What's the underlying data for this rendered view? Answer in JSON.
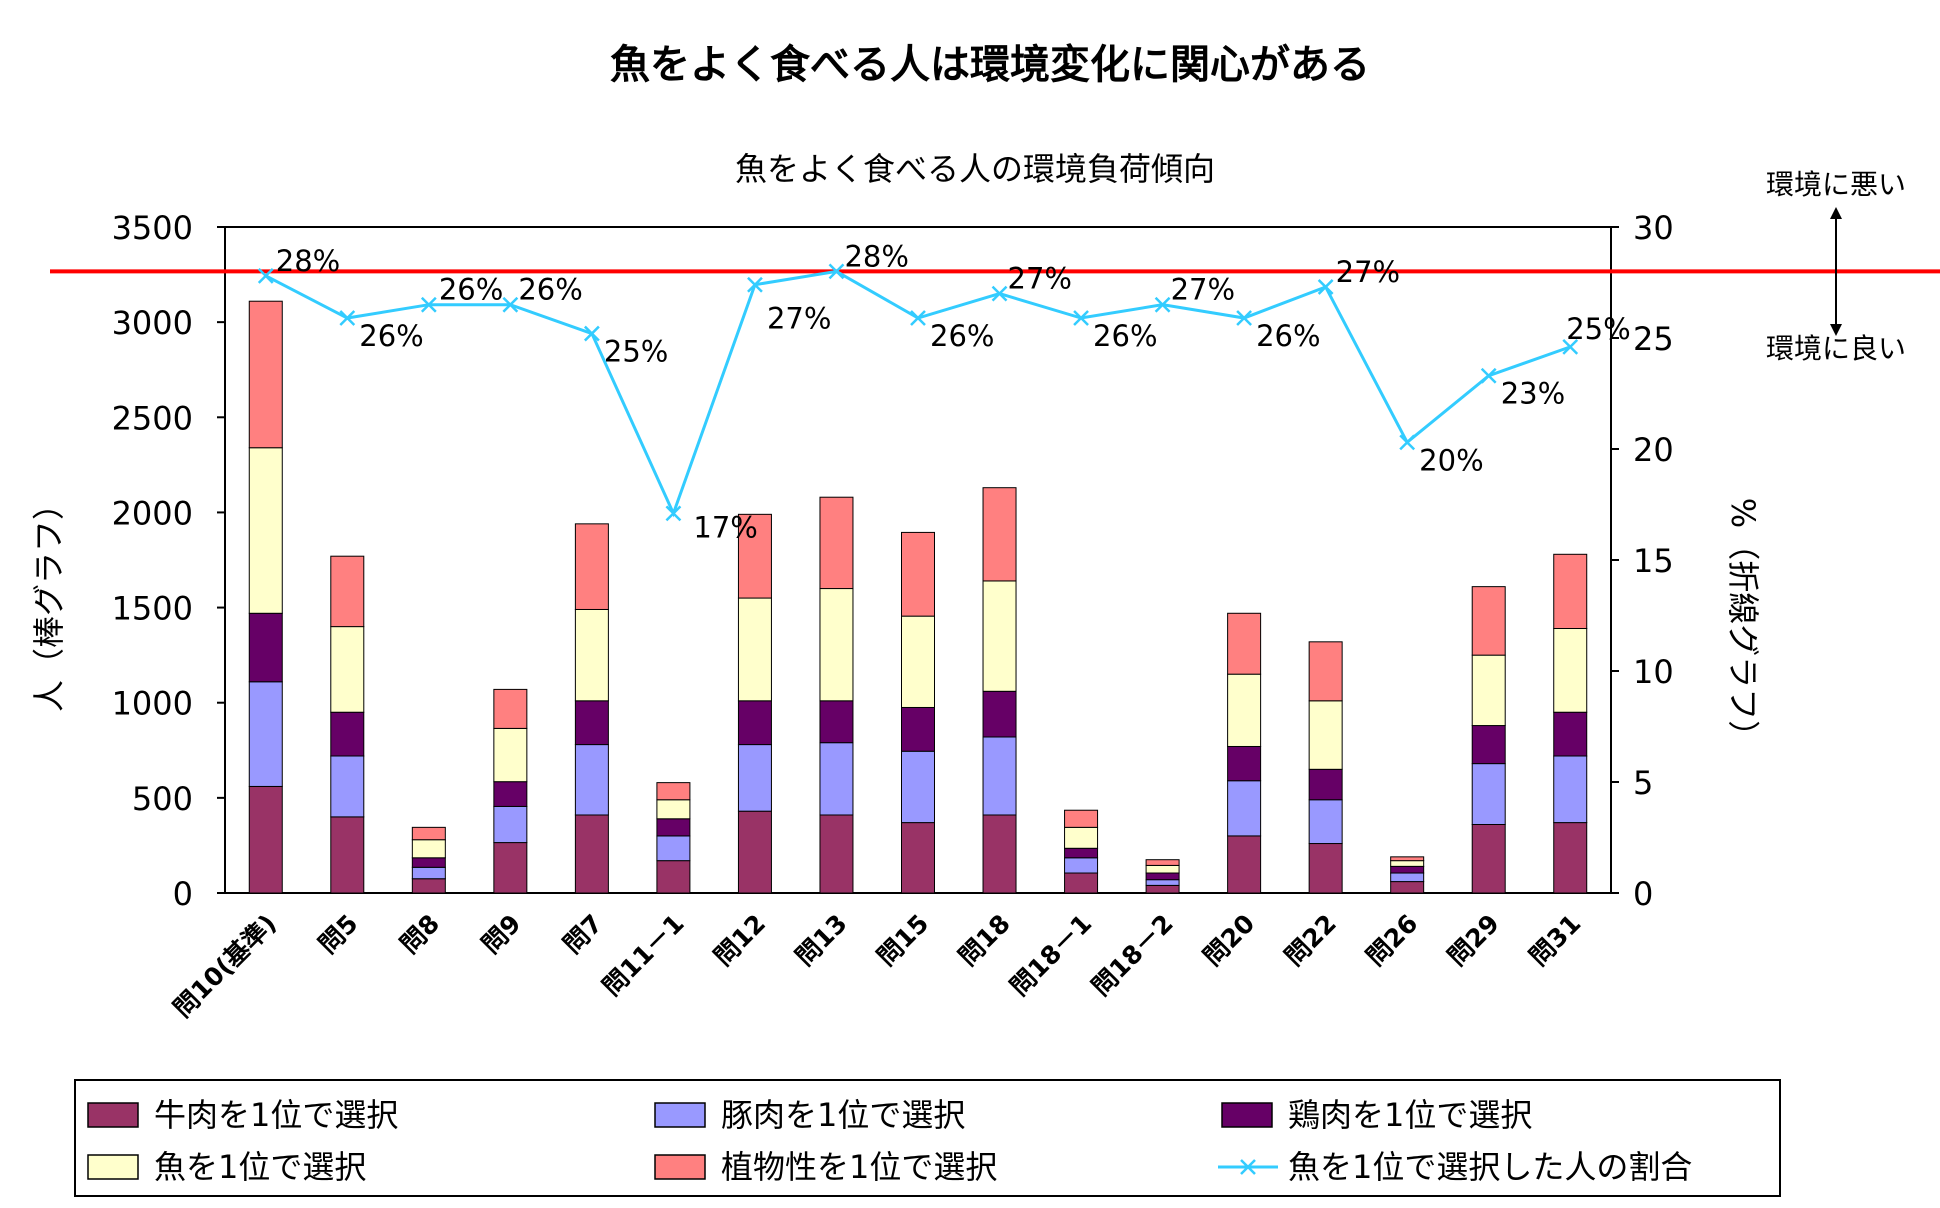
{
  "main_title": "魚をよく食べる人は環境変化に関心がある",
  "chart_data": {
    "type": "bar",
    "title": "魚をよく食べる人の環境負荷傾向",
    "ylabel": "人（棒グラフ）",
    "y2label": "%（折線グラフ）",
    "ylim": [
      0,
      3500
    ],
    "y2lim": [
      0,
      30
    ],
    "yticks": [
      "0",
      "500",
      "1000",
      "1500",
      "2000",
      "2500",
      "3000",
      "3500"
    ],
    "y2ticks": [
      "0",
      "5",
      "10",
      "15",
      "20",
      "25",
      "30"
    ],
    "categories": [
      "問10(基準)",
      "問5",
      "問8",
      "問9",
      "問7",
      "問11－1",
      "問12",
      "問13",
      "問15",
      "問18",
      "問18－1",
      "問18－2",
      "問20",
      "問22",
      "問26",
      "問29",
      "問31"
    ],
    "series": [
      {
        "name": "牛肉を1位で選択",
        "color": "#993366",
        "values": [
          560,
          400,
          75,
          265,
          410,
          170,
          430,
          410,
          370,
          410,
          105,
          40,
          300,
          260,
          60,
          360,
          370
        ]
      },
      {
        "name": "豚肉を1位で選択",
        "color": "#9999FF",
        "values": [
          550,
          320,
          60,
          190,
          370,
          130,
          350,
          380,
          375,
          410,
          80,
          30,
          290,
          230,
          45,
          320,
          350
        ]
      },
      {
        "name": "鶏肉を1位で選択",
        "color": "#660066",
        "values": [
          360,
          230,
          50,
          130,
          230,
          90,
          230,
          220,
          230,
          240,
          50,
          35,
          180,
          160,
          35,
          200,
          230
        ]
      },
      {
        "name": "魚を1位で選択",
        "color": "#FFFFCC",
        "values": [
          870,
          450,
          95,
          280,
          480,
          100,
          540,
          590,
          480,
          580,
          110,
          40,
          380,
          360,
          30,
          370,
          440
        ]
      },
      {
        "name": "植物性を1位で選択",
        "color": "#FF8080",
        "values": [
          770,
          370,
          65,
          205,
          450,
          90,
          440,
          480,
          440,
          490,
          90,
          30,
          320,
          310,
          20,
          360,
          390
        ]
      }
    ],
    "line": {
      "name": "魚を1位で選択した人の割合",
      "color": "#33CCFF",
      "axis": "right",
      "values": [
        27.8,
        25.9,
        26.5,
        26.5,
        25.2,
        17.1,
        27.4,
        28.0,
        25.9,
        27.0,
        25.9,
        26.5,
        25.9,
        27.3,
        20.3,
        23.3,
        24.6
      ],
      "labels": [
        "28%",
        "26%",
        "26%",
        "26%",
        "25%",
        "17%",
        "27%",
        "28%",
        "26%",
        "27%",
        "26%",
        "27%",
        "26%",
        "27%",
        "20%",
        "23%",
        "25%"
      ]
    },
    "reference_line": {
      "value": 28,
      "axis": "right",
      "color": "#FF0000"
    },
    "annotations": {
      "worse": "環境に悪い",
      "better": "環境に良い"
    },
    "legend_position": "bottom",
    "grid": false
  }
}
